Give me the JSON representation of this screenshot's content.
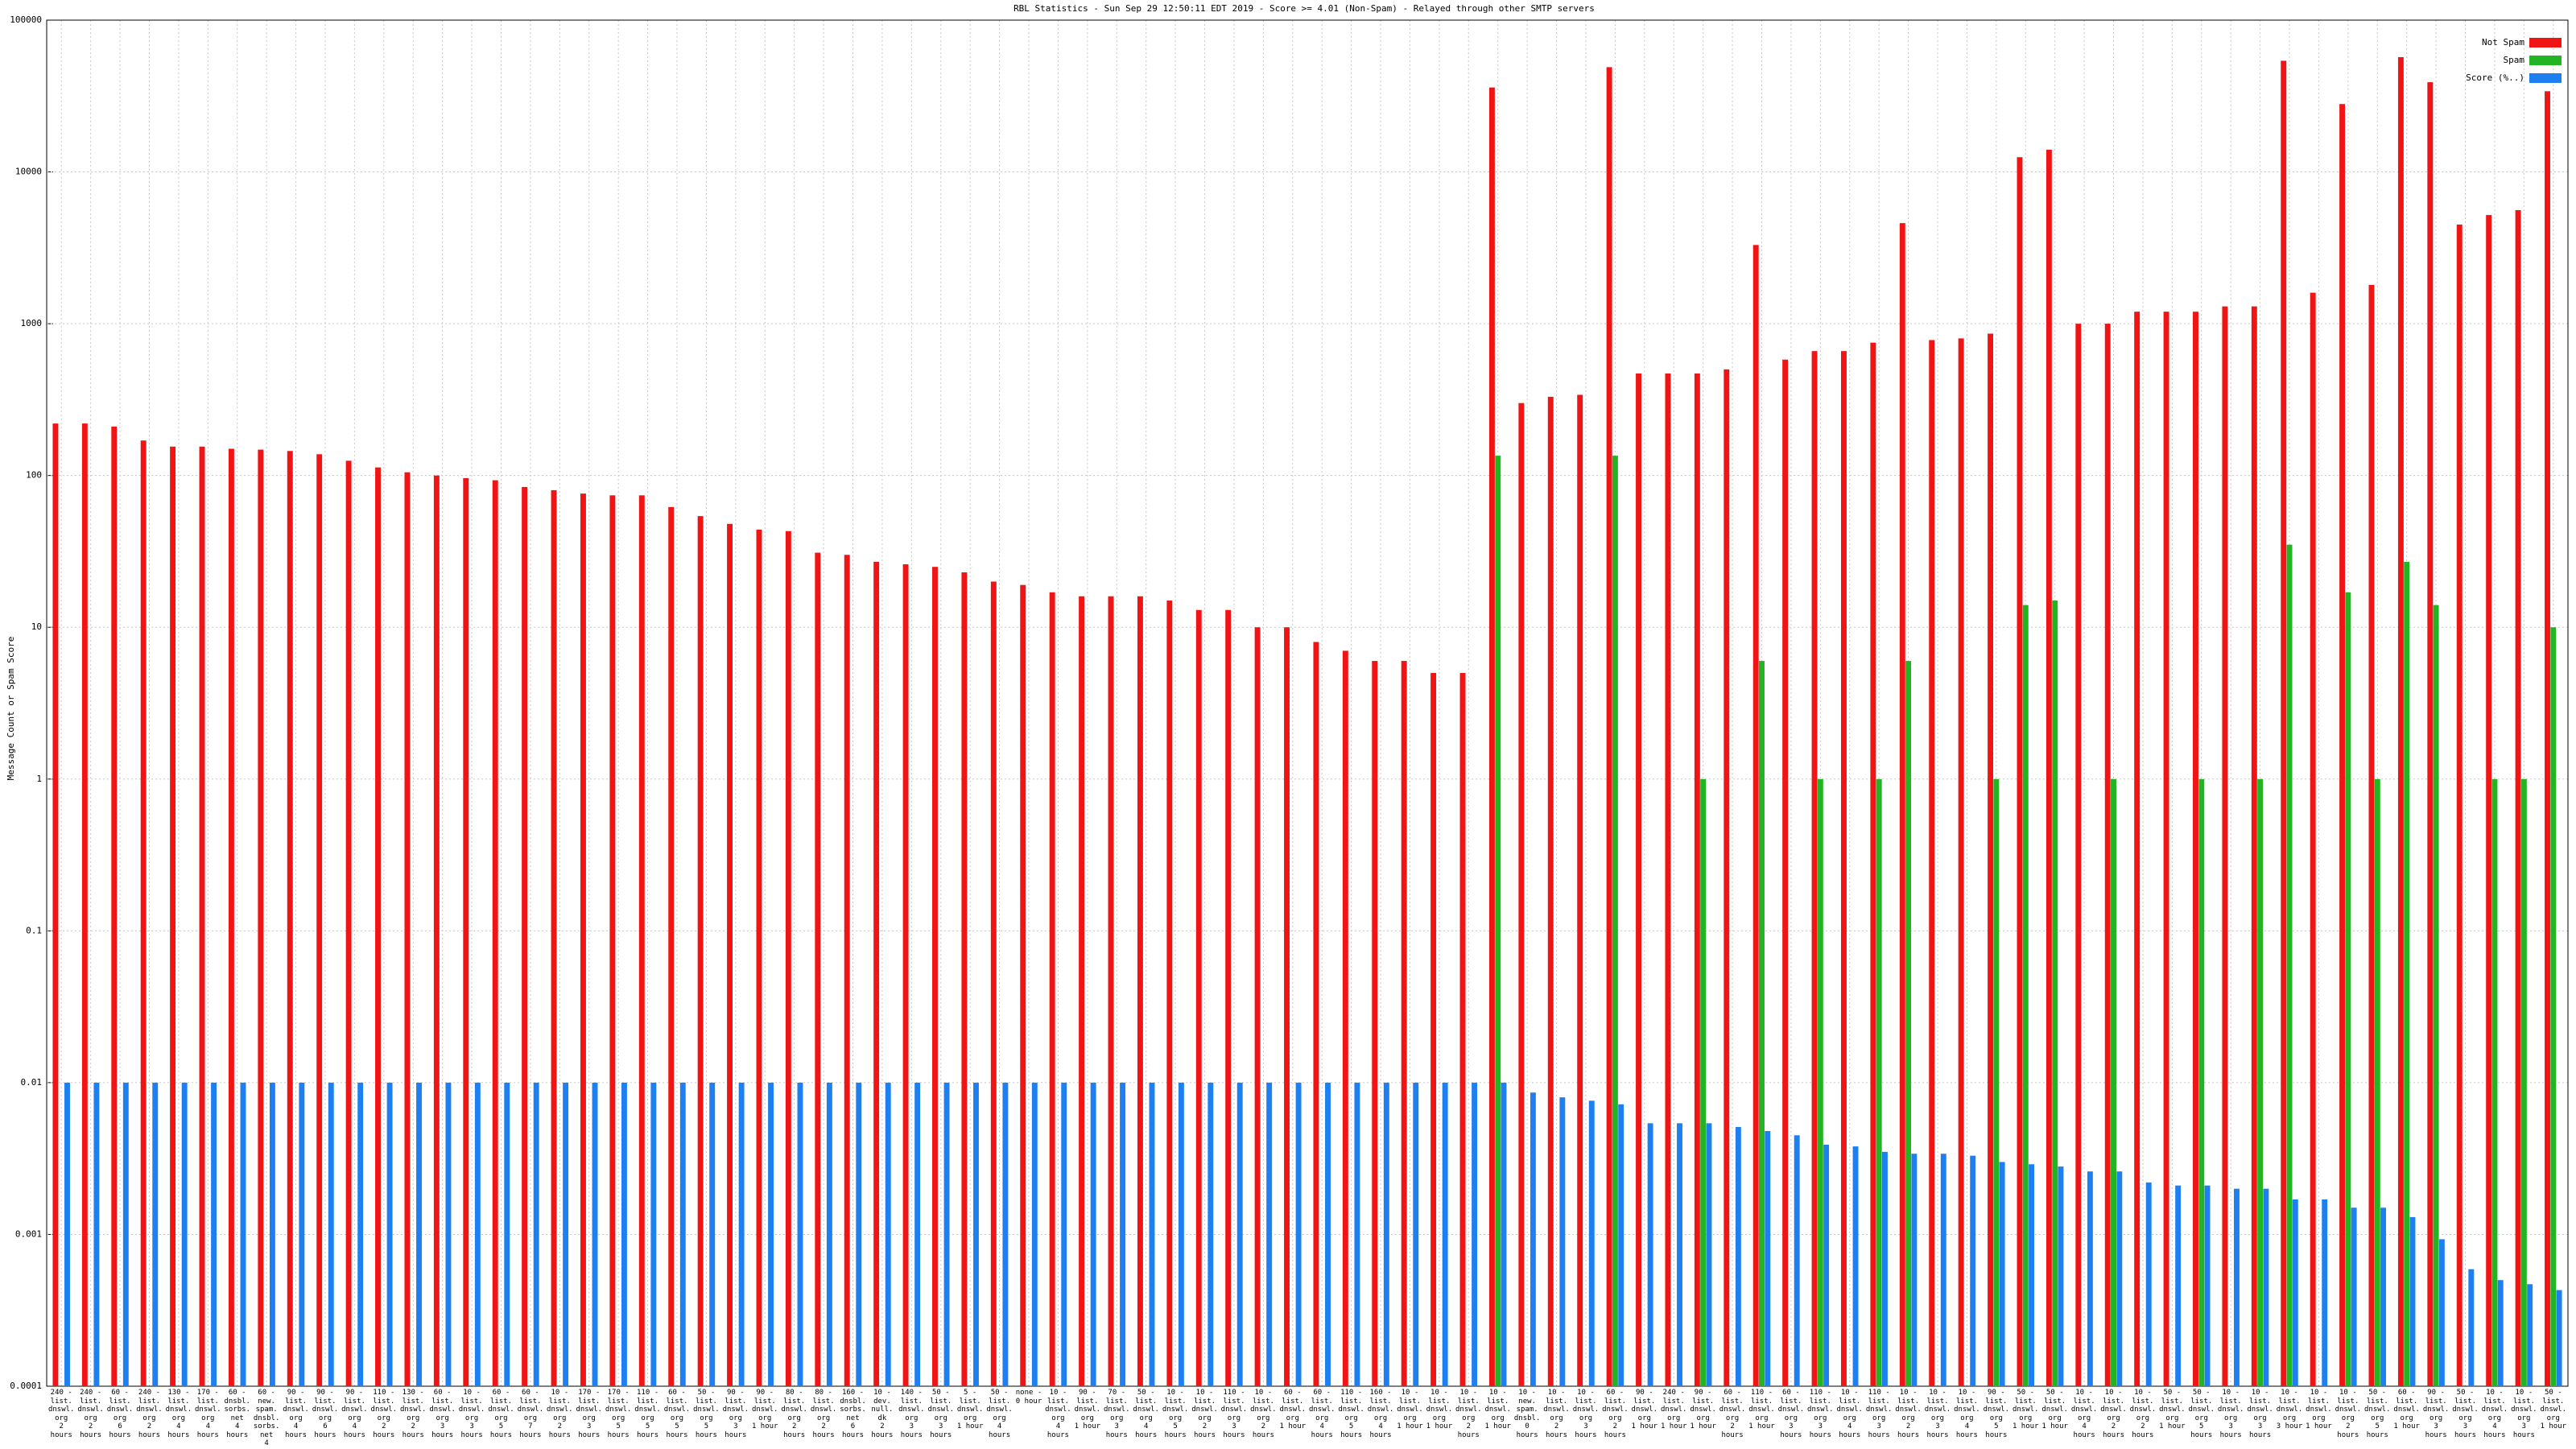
{
  "chart_data": {
    "type": "bar",
    "title": "RBL Statistics - Sun Sep 29 12:50:11 EDT 2019 - Score >= 4.01 (Non-Spam) - Relayed through other SMTP servers",
    "ylabel": "Message Count or Spam Score",
    "log": true,
    "grid": true,
    "legend": "upper right",
    "ylim": [
      0.0001,
      100000
    ],
    "yticks": [
      0.0001,
      0.001,
      0.01,
      0.1,
      1,
      10,
      100,
      1000,
      10000,
      100000
    ],
    "categories": [
      "240 -\nlist.\ndnswl.\norg\n2 hours",
      "240 -\nlist.\ndnswl.\norg\n2 hours",
      "60 -\nlist.\ndnswl.\norg\n6 hours",
      "240 -\nlist.\ndnswl.\norg\n2 hours",
      "130 -\nlist.\ndnswl.\norg\n4 hours",
      "170 -\nlist.\ndnswl.\norg\n4 hours",
      "60 -\ndnsbl.\nsorbs.\nnet\n4 hours",
      "60 -\nnew.\nspam.\ndnsbl.\nsorbs.\nnet\n4 hours",
      "90 -\nlist.\ndnswl.\norg\n4 hours",
      "90 -\nlist.\ndnswl.\norg\n6 hours",
      "90 -\nlist.\ndnswl.\norg\n4 hours",
      "110 -\nlist.\ndnswl.\norg\n2 hours",
      "130 -\nlist.\ndnswl.\norg\n2 hours",
      "60 -\nlist.\ndnswl.\norg\n3 hours",
      "10 -\nlist.\ndnswl.\norg\n3 hours",
      "60 -\nlist.\ndnswl.\norg\n5 hours",
      "60 -\nlist.\ndnswl.\norg\n7 hours",
      "10 -\nlist.\ndnswl.\norg\n2 hours",
      "170 -\nlist.\ndnswl.\norg\n3 hours",
      "170 -\nlist.\ndnswl.\norg\n5 hours",
      "110 -\nlist.\ndnswl.\norg\n5 hours",
      "60 -\nlist.\ndnswl.\norg\n5 hours",
      "50 -\nlist.\ndnswl.\norg\n5 hours",
      "90 -\nlist.\ndnswl.\norg\n3 hours",
      "90 -\nlist.\ndnswl.\norg\n1 hour",
      "80 -\nlist.\ndnswl.\norg\n2 hours",
      "80 -\nlist.\ndnswl.\norg\n2 hours",
      "160 -\ndnsbl.\nsorbs.\nnet\n6 hours",
      "10 -\ndev.\nnull.\ndk\n2 hours",
      "140 -\nlist.\ndnswl.\norg\n3 hours",
      "50 -\nlist.\ndnswl.\norg\n3 hours",
      "5 -\nlist.\ndnswl.\norg\n1 hour",
      "50 -\nlist.\ndnswl.\norg\n4 hours",
      "none -\n0 hour",
      "10 -\nlist.\ndnswl.\norg\n4 hours",
      "90 -\nlist.\ndnswl.\norg\n1 hour",
      "70 -\nlist.\ndnswl.\norg\n3 hours",
      "50 -\nlist.\ndnswl.\norg\n4 hours",
      "10 -\nlist.\ndnswl.\norg\n5 hours",
      "10 -\nlist.\ndnswl.\norg\n2 hours",
      "110 -\nlist.\ndnswl.\norg\n3 hours",
      "10 -\nlist.\ndnswl.\norg\n2 hours",
      "60 -\nlist.\ndnswl.\norg\n1 hour",
      "60 -\nlist.\ndnswl.\norg\n4 hours",
      "110 -\nlist.\ndnswl.\norg\n5 hours",
      "160 -\nlist.\ndnswl.\norg\n4 hours",
      "10 -\nlist.\ndnswl.\norg\n1 hour",
      "10 -\nlist.\ndnswl.\norg\n1 hour",
      "10 -\nlist.\ndnswl.\norg\n2 hours",
      "10 -\nlist.\ndnswl.\norg\n1 hour",
      "10 -\nnew.\nspam.\ndnsbl.\n0 hours",
      "10 -\nlist.\ndnswl.\norg\n2 hours",
      "10 -\nlist.\ndnswl.\norg\n3 hours",
      "60 -\nlist.\ndnswl.\norg\n2 hours",
      "90 -\nlist.\ndnswl.\norg\n1 hour",
      "240 -\nlist.\ndnswl.\norg\n1 hour",
      "90 -\nlist.\ndnswl.\norg\n1 hour",
      "60 -\nlist.\ndnswl.\norg\n2 hours",
      "110 -\nlist.\ndnswl.\norg\n1 hour",
      "60 -\nlist.\ndnswl.\norg\n3 hours",
      "110 -\nlist.\ndnswl.\norg\n3 hours",
      "10 -\nlist.\ndnswl.\norg\n4 hours",
      "110 -\nlist.\ndnswl.\norg\n3 hours",
      "10 -\nlist.\ndnswl.\norg\n2 hours",
      "10 -\nlist.\ndnswl.\norg\n3 hours",
      "10 -\nlist.\ndnswl.\norg\n4 hours",
      "90 -\nlist.\ndnswl.\norg\n5 hours",
      "50 -\nlist.\ndnswl.\norg\n1 hour",
      "50 -\nlist.\ndnswl.\norg\n1 hour",
      "10 -\nlist.\ndnswl.\norg\n4 hours",
      "10 -\nlist.\ndnswl.\norg\n2 hours",
      "10 -\nlist.\ndnswl.\norg\n2 hours",
      "50 -\nlist.\ndnswl.\norg\n1 hour",
      "50 -\nlist.\ndnswl.\norg\n5 hours",
      "10 -\nlist.\ndnswl.\norg\n3 hours",
      "10 -\nlist.\ndnswl.\norg\n3 hours",
      "10 -\nlist.\ndnswl.\norg\n3 hour",
      "10 -\nlist.\ndnswl.\norg\n1 hour",
      "10 -\nlist.\ndnswl.\norg\n2 hours",
      "50 -\nlist.\ndnswl.\norg\n5 hours",
      "60 -\nlist.\ndnswl.\norg\n1 hour",
      "90 -\nlist.\ndnswl.\norg\n3 hours",
      "50 -\nlist.\ndnswl.\norg\n3 hours",
      "10 -\nlist.\ndnswl.\norg\n4 hours",
      "10 -\nlist.\ndnswl.\norg\n3 hours",
      "50 -\nlist.\ndnswl.\norg\n1 hour"
    ],
    "series": [
      {
        "name": "Not Spam",
        "color": "#f01414",
        "values": [
          220,
          220,
          210,
          170,
          155,
          155,
          150,
          148,
          145,
          138,
          125,
          113,
          105,
          100,
          96,
          93,
          84,
          80,
          76,
          74,
          74,
          62,
          54,
          48,
          44,
          43,
          31,
          30,
          27,
          26,
          25,
          23,
          20,
          19,
          17,
          16,
          16,
          16,
          15,
          13,
          13,
          10,
          10,
          8,
          7,
          6,
          6,
          5,
          5,
          36000,
          300,
          330,
          340,
          49000,
          470,
          470,
          470,
          500,
          3300,
          580,
          660,
          660,
          750,
          4600,
          780,
          800,
          860,
          12500,
          14000,
          1000,
          1000,
          1200,
          1200,
          1200,
          1300,
          1300,
          54000,
          1600,
          28000,
          1800,
          57000,
          39000,
          4500,
          5200,
          5600,
          34000
        ]
      },
      {
        "name": "Spam",
        "color": "#22b422",
        "values": [
          null,
          null,
          null,
          null,
          null,
          null,
          null,
          null,
          null,
          null,
          null,
          null,
          null,
          null,
          null,
          null,
          null,
          null,
          null,
          null,
          null,
          null,
          null,
          null,
          null,
          null,
          null,
          null,
          null,
          null,
          null,
          null,
          null,
          null,
          null,
          null,
          null,
          null,
          null,
          null,
          null,
          null,
          null,
          null,
          null,
          null,
          null,
          null,
          null,
          135,
          null,
          null,
          null,
          135,
          null,
          null,
          1,
          null,
          6,
          null,
          1,
          null,
          1,
          6,
          null,
          null,
          1,
          14,
          15,
          null,
          1,
          null,
          null,
          1,
          null,
          1,
          35,
          null,
          17,
          1,
          27,
          14,
          null,
          1,
          1,
          10
        ]
      },
      {
        "name": "Score (%..)",
        "color": "#1e80f0",
        "values": [
          0.01,
          0.01,
          0.01,
          0.01,
          0.01,
          0.01,
          0.01,
          0.01,
          0.01,
          0.01,
          0.01,
          0.01,
          0.01,
          0.01,
          0.01,
          0.01,
          0.01,
          0.01,
          0.01,
          0.01,
          0.01,
          0.01,
          0.01,
          0.01,
          0.01,
          0.01,
          0.01,
          0.01,
          0.01,
          0.01,
          0.01,
          0.01,
          0.01,
          0.01,
          0.01,
          0.01,
          0.01,
          0.01,
          0.01,
          0.01,
          0.01,
          0.01,
          0.01,
          0.01,
          0.01,
          0.01,
          0.01,
          0.01,
          0.01,
          0.01,
          0.0086,
          0.008,
          0.0076,
          0.0072,
          0.0054,
          0.0054,
          0.0054,
          0.0051,
          0.0048,
          0.0045,
          0.0039,
          0.0038,
          0.0035,
          0.0034,
          0.0034,
          0.0033,
          0.003,
          0.0029,
          0.0028,
          0.0026,
          0.0026,
          0.0022,
          0.0021,
          0.0021,
          0.002,
          0.002,
          0.0017,
          0.0017,
          0.0015,
          0.0015,
          0.0013,
          0.00093,
          0.00059,
          0.0005,
          0.00047,
          0.00043
        ]
      }
    ]
  }
}
